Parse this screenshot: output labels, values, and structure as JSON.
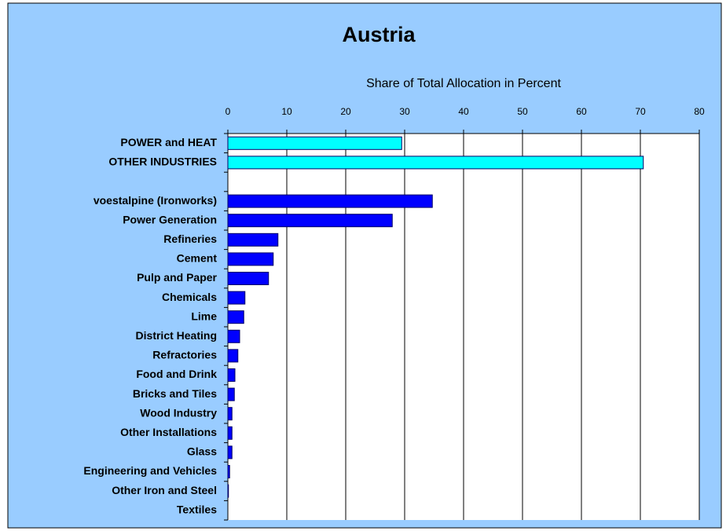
{
  "chart_data": {
    "type": "hbar",
    "title": "Austria",
    "subtitle": "Share of Total Allocation in Percent",
    "categories": [
      "POWER and HEAT",
      "OTHER INDUSTRIES",
      null,
      "voestalpine (Ironworks)",
      "Power Generation",
      "Refineries",
      "Cement",
      "Pulp and Paper",
      "Chemicals",
      "Lime",
      "District Heating",
      "Refractories",
      "Food and Drink",
      "Bricks and Tiles",
      "Wood Industry",
      "Other Installations",
      "Glass",
      "Engineering and Vehicles",
      "Other Iron and Steel",
      "Textiles"
    ],
    "values": [
      29.5,
      70.5,
      null,
      34.7,
      27.9,
      8.5,
      7.7,
      6.9,
      2.9,
      2.7,
      2.0,
      1.7,
      1.2,
      1.1,
      0.7,
      0.7,
      0.7,
      0.3,
      0.1,
      0
    ],
    "colors": [
      "#00ffff",
      "#00ffff",
      null,
      "#0000ff",
      "#0000ff",
      "#0000ff",
      "#0000ff",
      "#0000ff",
      "#0000ff",
      "#0000ff",
      "#0000ff",
      "#0000ff",
      "#0000ff",
      "#0000ff",
      "#0000ff",
      "#0000ff",
      "#0000ff",
      "#0000ff",
      "#0000ff",
      "#0000ff"
    ],
    "xlim": [
      0,
      80
    ],
    "xticks": [
      0,
      10,
      20,
      30,
      40,
      50,
      60,
      70,
      80
    ],
    "grid": true
  }
}
